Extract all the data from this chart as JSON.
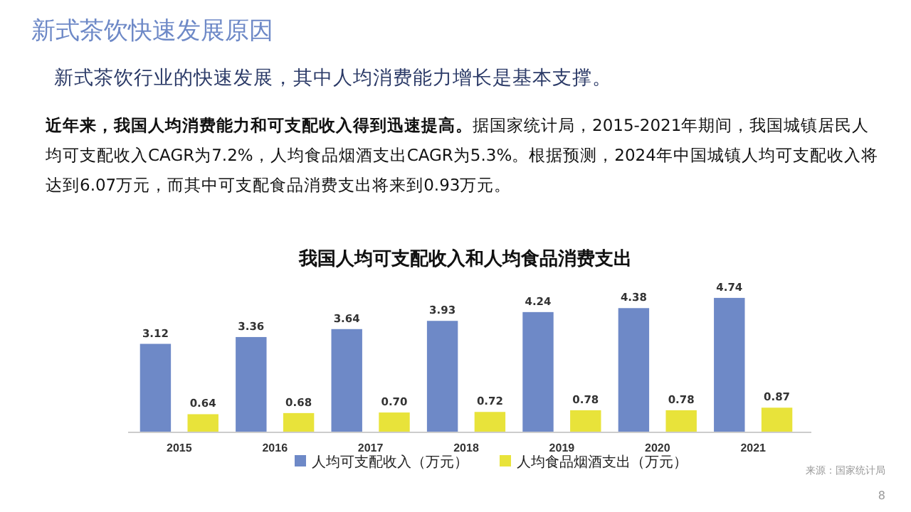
{
  "chart_data": {
    "type": "bar",
    "title": "我国人均可支配收入和人均食品消费支出",
    "annotations": [
      "新式茶饮快速发展原因",
      "新式茶饮行业的快速发展，其中人均消费能力增长是基本支撑。",
      "近年来，我国人均消费能力和可支配收入得到迅速提高。",
      "据国家统计局，2015-2021年期间，我国城镇居民人均可支配收入CAGR为7.2%，人均食品烟酒支出CAGR为5.3%。根据预测，2024年中国城镇人均可支配收入将达到6.07万元，而其中可支配食品消费支出将来到0.93万元。",
      "来源：国家统计局",
      "8"
    ],
    "categories": [
      "2015",
      "2016",
      "2017",
      "2018",
      "2019",
      "2020",
      "2021"
    ],
    "series": [
      {
        "name": "人均可支配收入（万元）",
        "color": "#6e89c7",
        "values": [
          3.12,
          3.36,
          3.64,
          3.93,
          4.24,
          4.38,
          4.74
        ],
        "value_labels": [
          "3.12",
          "3.36",
          "3.64",
          "3.93",
          "4.24",
          "4.38",
          "4.74"
        ]
      },
      {
        "name": "人均食品烟酒支出（万元）",
        "color": "#e8e33a",
        "values": [
          0.64,
          0.68,
          0.7,
          0.72,
          0.78,
          0.78,
          0.87
        ],
        "value_labels": [
          "0.64",
          "0.68",
          "0.70",
          "0.72",
          "0.78",
          "0.78",
          "0.87"
        ]
      }
    ],
    "tick_labels": "x",
    "legend": "bottom"
  }
}
